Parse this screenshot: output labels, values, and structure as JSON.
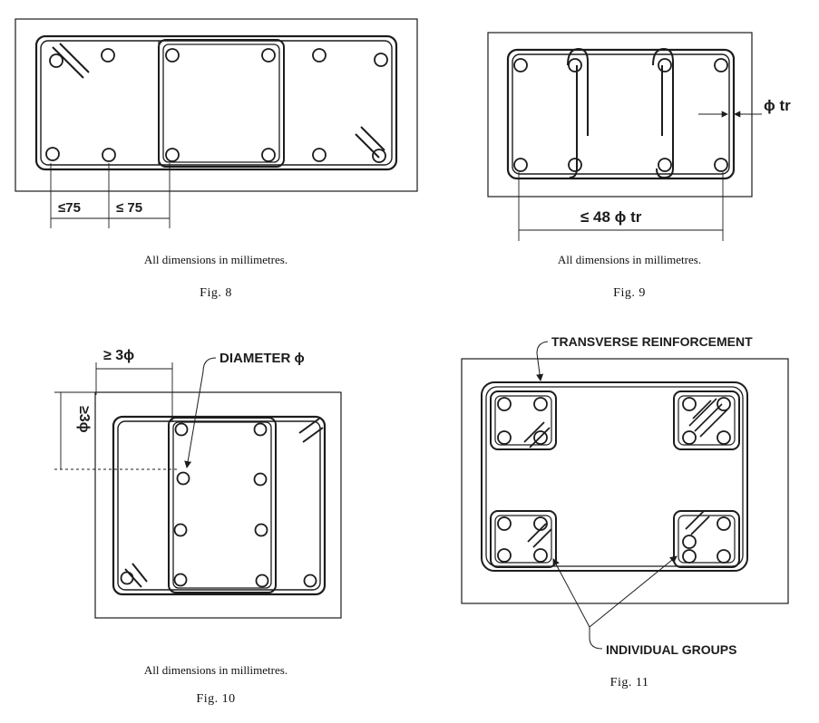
{
  "fig8": {
    "dim_left": "≤75",
    "dim_right": "≤ 75",
    "caption": "All dimensions in millimetres.",
    "label": "Fig. 8"
  },
  "fig9": {
    "phi_tr": "ϕ tr",
    "dim_bottom": "≤ 48 ϕ tr",
    "caption": "All dimensions in millimetres.",
    "label": "Fig. 9"
  },
  "fig10": {
    "dim_top": "≥ 3ϕ",
    "dim_side": "≥3ϕ",
    "diameter_label": "DIAMETER ϕ",
    "caption": "All dimensions in millimetres.",
    "label": "Fig. 10"
  },
  "fig11": {
    "transverse_label": "TRANSVERSE REINFORCEMENT",
    "groups_label": "INDIVIDUAL GROUPS",
    "label": "Fig. 11"
  }
}
